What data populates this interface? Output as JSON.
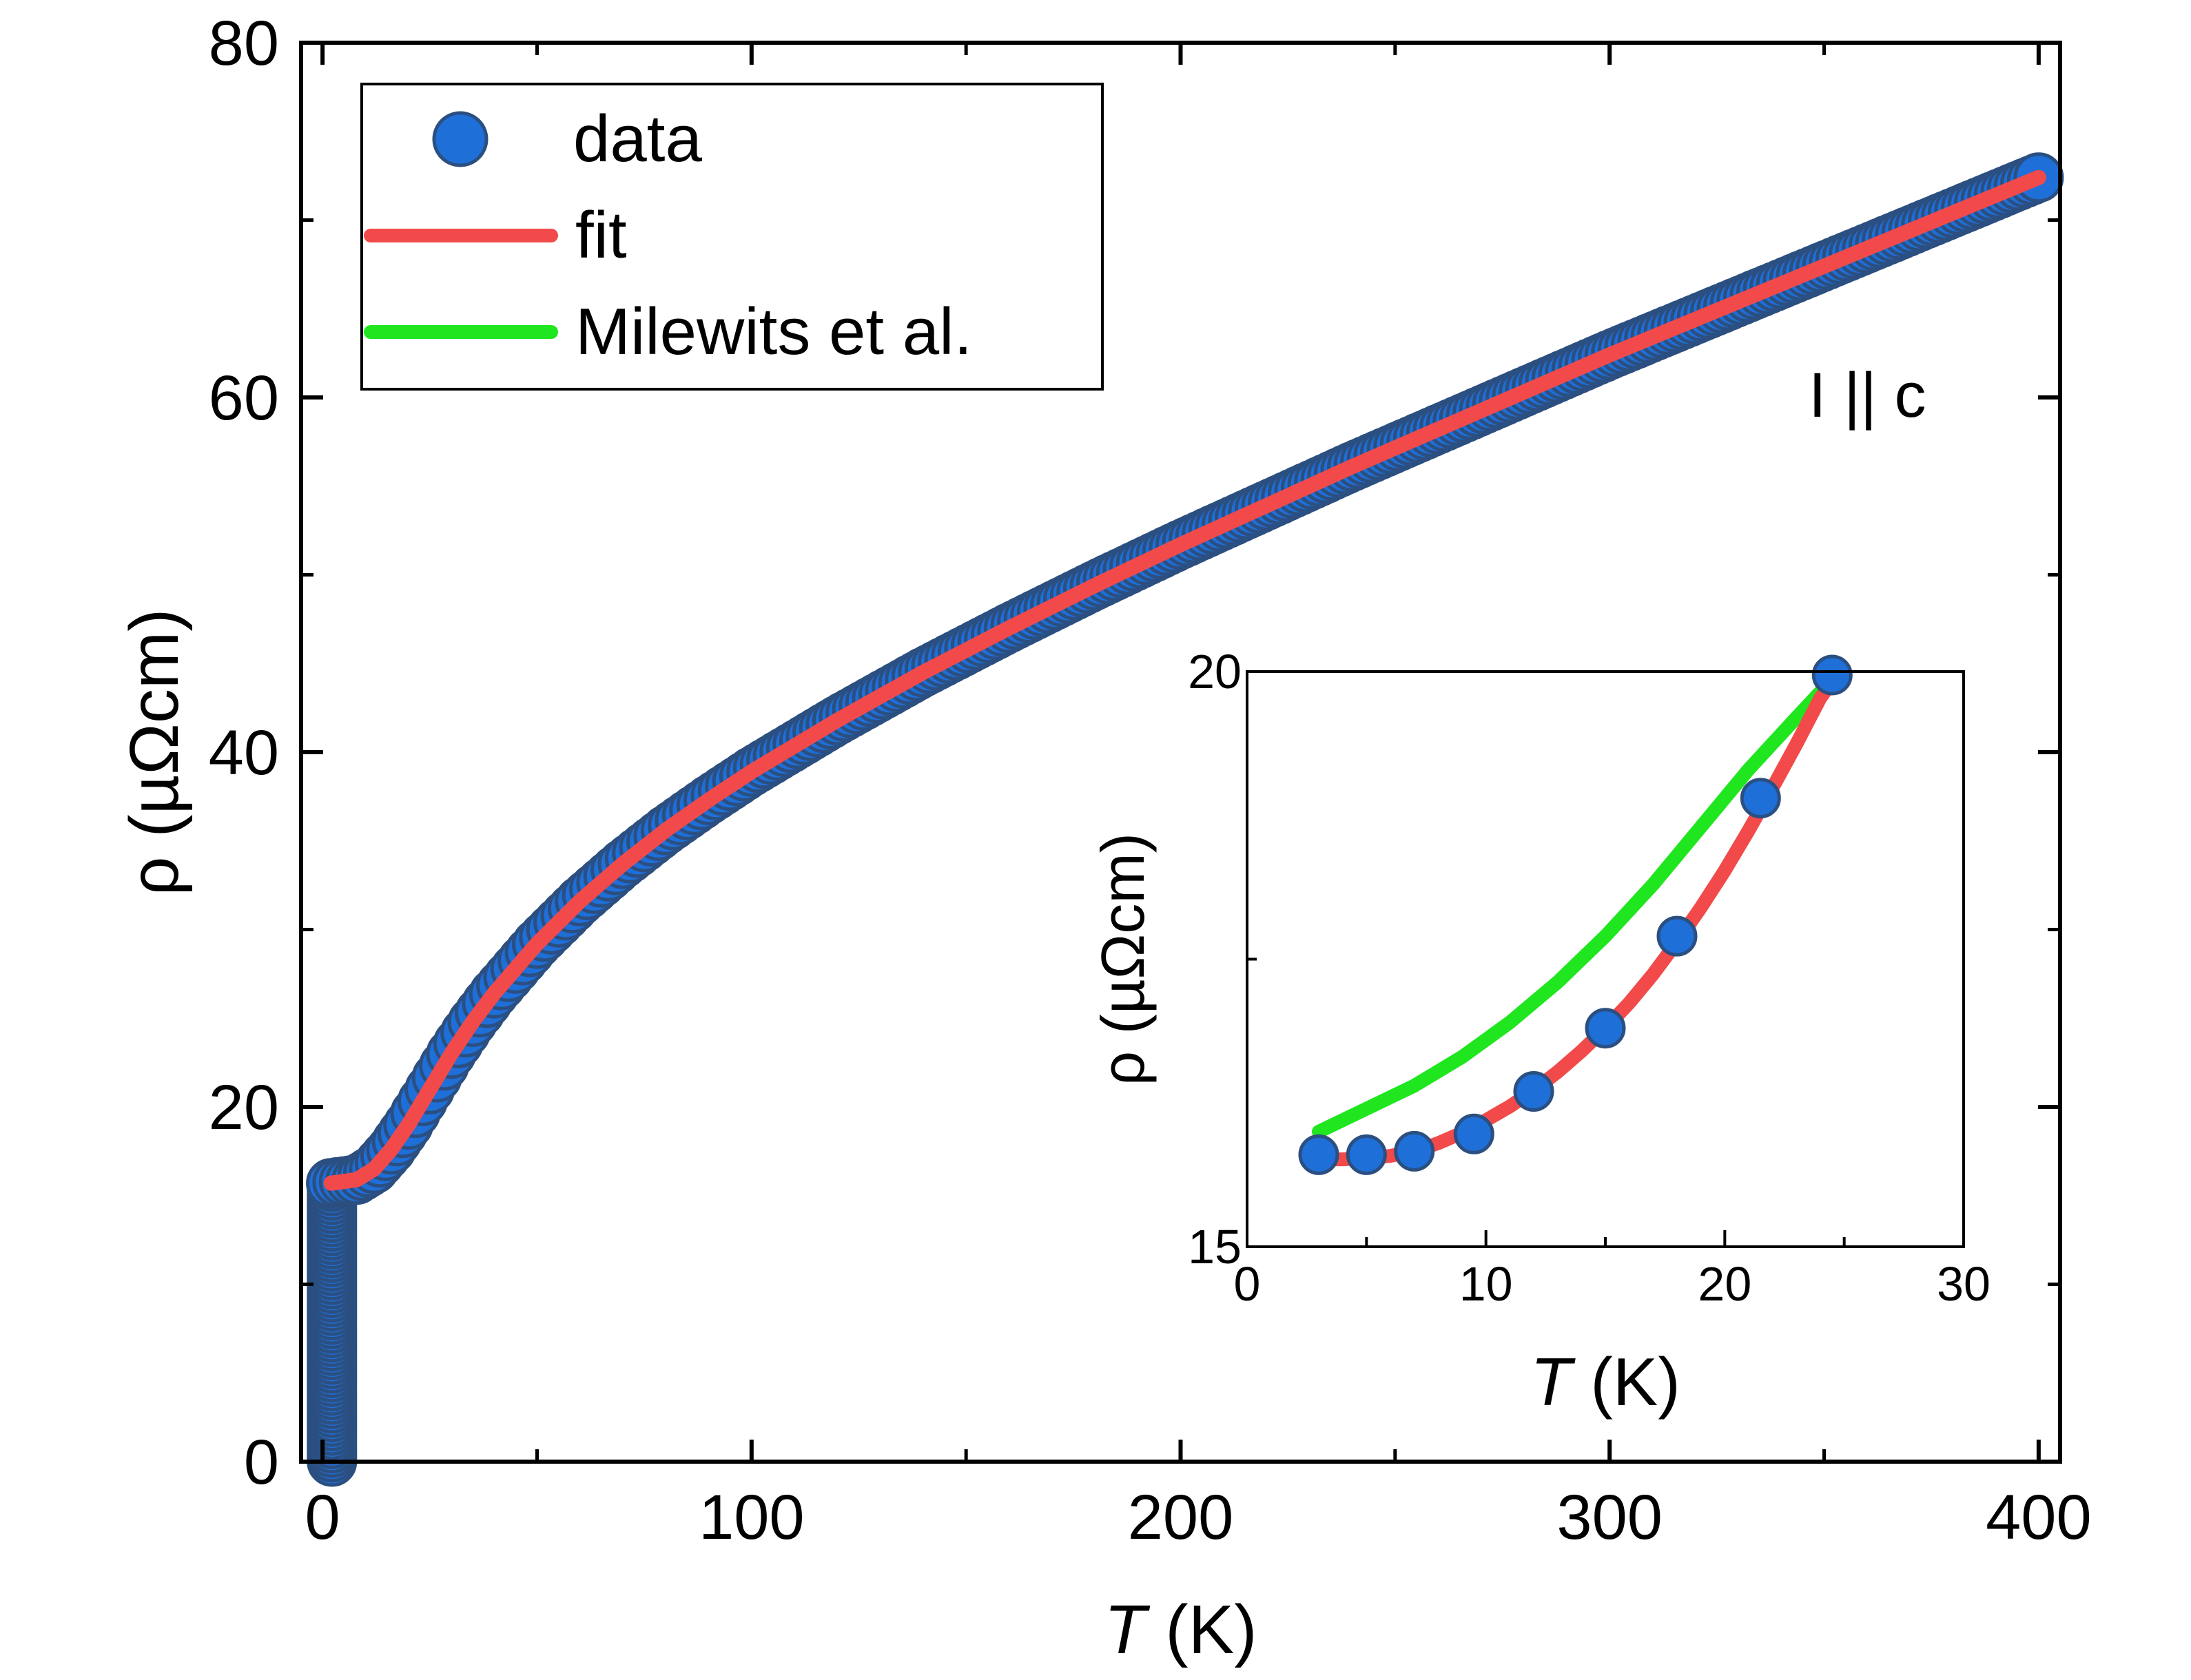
{
  "chart_data": [
    {
      "type": "scatter",
      "panel": "main",
      "xlabel": {
        "italic": "T",
        "rest": " (K)"
      },
      "ylabel": "ρ (µΩcm)",
      "xlim": [
        -5,
        405
      ],
      "ylim": [
        0,
        80
      ],
      "xticks": [
        0,
        100,
        200,
        300,
        400
      ],
      "yticks": [
        0,
        20,
        40,
        60,
        80
      ],
      "xticklabels": [
        "0",
        "100",
        "200",
        "300",
        "400"
      ],
      "yticklabels": [
        "0",
        "20",
        "40",
        "60",
        "80"
      ],
      "annotation": "I || c",
      "legend": {
        "position": "top-left",
        "entries": [
          {
            "label": "data",
            "kind": "marker",
            "color": "#1f6fd9"
          },
          {
            "label": "fit",
            "kind": "line",
            "color": "#f24a4a"
          },
          {
            "label": "Milewits et al.",
            "kind": "line",
            "color": "#1fe61f"
          }
        ]
      },
      "series": [
        {
          "name": "data",
          "color": "#1f6fd9",
          "x": [
            2,
            5,
            8,
            12,
            16,
            20,
            25,
            30,
            35,
            40,
            50,
            60,
            70,
            80,
            90,
            100,
            120,
            140,
            160,
            180,
            200,
            220,
            240,
            260,
            280,
            300,
            320,
            340,
            360,
            380,
            400
          ],
          "y": [
            15.7,
            15.8,
            15.9,
            16.5,
            17.6,
            19.0,
            21.0,
            23.0,
            24.8,
            26.4,
            29.2,
            31.6,
            33.7,
            35.6,
            37.3,
            38.9,
            41.8,
            44.5,
            47.0,
            49.4,
            51.7,
            53.9,
            56.1,
            58.2,
            60.3,
            62.4,
            64.4,
            66.4,
            68.4,
            70.4,
            72.4
          ]
        },
        {
          "name": "fit",
          "color": "#f24a4a",
          "x": [
            2,
            5,
            8,
            12,
            16,
            20,
            25,
            30,
            35,
            40,
            50,
            60,
            70,
            80,
            90,
            100,
            120,
            140,
            160,
            180,
            200,
            220,
            240,
            260,
            280,
            300,
            320,
            340,
            360,
            380,
            400
          ],
          "y": [
            15.7,
            15.8,
            15.9,
            16.5,
            17.6,
            19.0,
            21.0,
            23.0,
            24.8,
            26.4,
            29.2,
            31.6,
            33.7,
            35.6,
            37.3,
            38.9,
            41.8,
            44.5,
            47.0,
            49.4,
            51.7,
            53.9,
            56.1,
            58.2,
            60.3,
            62.4,
            64.4,
            66.4,
            68.4,
            70.4,
            72.4
          ]
        }
      ]
    },
    {
      "type": "scatter",
      "panel": "inset",
      "xlabel": {
        "italic": "T",
        "rest": " (K)"
      },
      "ylabel": "ρ (µΩcm)",
      "xlim": [
        0,
        30
      ],
      "ylim": [
        15,
        20
      ],
      "xticks": [
        0,
        10,
        20,
        30
      ],
      "yticks": [
        15,
        20
      ],
      "xticklabels": [
        "0",
        "10",
        "20",
        "30"
      ],
      "yticklabels": [
        "15",
        "20"
      ],
      "series": [
        {
          "name": "data",
          "color": "#1f6fd9",
          "x": [
            3,
            5,
            7,
            9.5,
            12,
            15,
            18,
            21.5,
            24.5
          ],
          "y": [
            15.8,
            15.8,
            15.83,
            15.98,
            16.35,
            16.9,
            17.7,
            18.9,
            19.97
          ]
        },
        {
          "name": "fit",
          "color": "#f24a4a",
          "x": [
            3,
            4,
            5,
            6,
            7,
            8,
            9,
            10,
            11,
            12,
            13,
            14,
            15,
            16,
            17,
            18,
            19,
            20,
            21,
            22,
            23,
            24,
            24.8
          ],
          "y": [
            15.76,
            15.76,
            15.77,
            15.79,
            15.83,
            15.9,
            15.99,
            16.1,
            16.22,
            16.36,
            16.52,
            16.7,
            16.9,
            17.12,
            17.37,
            17.65,
            17.95,
            18.27,
            18.62,
            18.99,
            19.37,
            19.77,
            20.0
          ]
        },
        {
          "name": "Milewits et al.",
          "color": "#1fe61f",
          "x": [
            3,
            5,
            7,
            9,
            11,
            13,
            15,
            17,
            19,
            21,
            23,
            24.8
          ],
          "y": [
            16.0,
            16.2,
            16.4,
            16.65,
            16.95,
            17.3,
            17.7,
            18.15,
            18.65,
            19.15,
            19.6,
            20.0
          ]
        }
      ]
    }
  ]
}
